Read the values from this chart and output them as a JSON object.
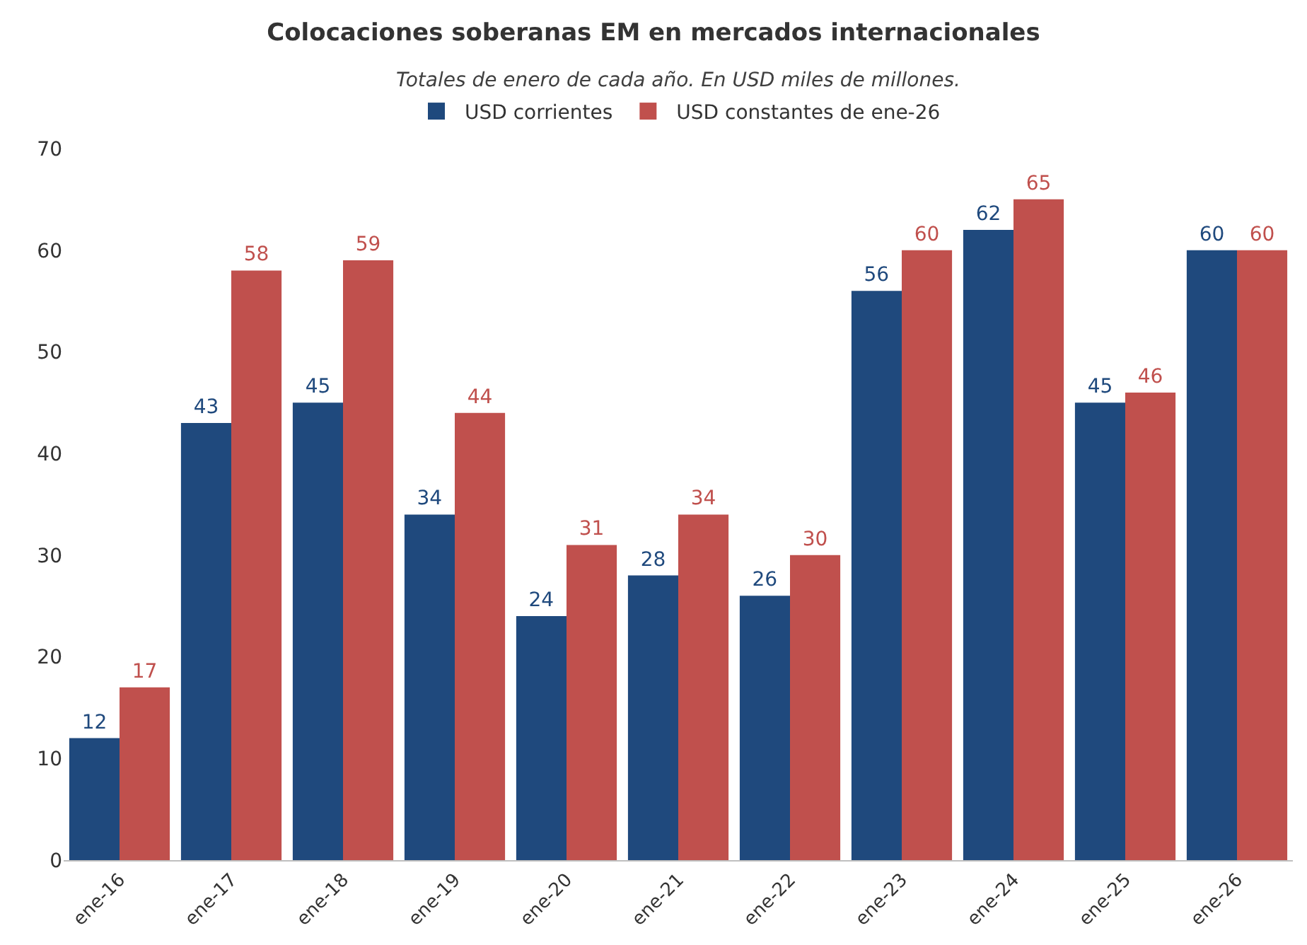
{
  "chart_data": {
    "type": "bar",
    "title": "Colocaciones soberanas EM en mercados internacionales",
    "subtitle": "Totales de enero de cada año. En USD miles de millones.",
    "categories": [
      "ene-16",
      "ene-17",
      "ene-18",
      "ene-19",
      "ene-20",
      "ene-21",
      "ene-22",
      "ene-23",
      "ene-24",
      "ene-25",
      "ene-26"
    ],
    "series": [
      {
        "name": "USD corrientes",
        "color": "#1f497d",
        "values": [
          12,
          43,
          45,
          34,
          24,
          28,
          26,
          56,
          62,
          45,
          60
        ]
      },
      {
        "name": "USD constantes de ene-26",
        "color": "#c0504d",
        "values": [
          17,
          58,
          59,
          44,
          31,
          34,
          30,
          60,
          65,
          46,
          60
        ]
      }
    ],
    "ylim": [
      0,
      70
    ],
    "yticks": [
      0,
      10,
      20,
      30,
      40,
      50,
      60,
      70
    ],
    "grid": false,
    "legend": "top",
    "data_labels": true
  }
}
